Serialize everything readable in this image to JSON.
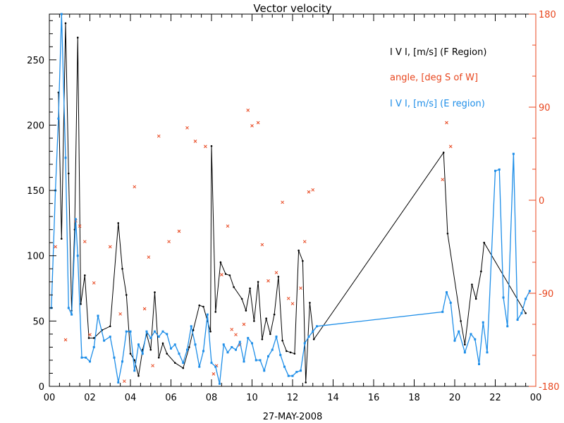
{
  "chart_data": {
    "type": "line",
    "title": "Vector velocity",
    "xlabel": "27-MAY-2008",
    "x_range": [
      0,
      24
    ],
    "x_ticks": [
      "00",
      "02",
      "04",
      "06",
      "08",
      "10",
      "12",
      "14",
      "16",
      "18",
      "20",
      "22",
      "00"
    ],
    "y_left_range": [
      0,
      285
    ],
    "y_left_ticks": [
      "0",
      "50",
      "100",
      "150",
      "200",
      "250"
    ],
    "y_right_range": [
      -180,
      180
    ],
    "y_right_ticks": [
      "-180",
      "-90",
      "0",
      "90",
      "180"
    ],
    "grid": false,
    "legend_position": "top-right",
    "colors": {
      "f_region": "#000000",
      "angle": "#e8461e",
      "e_region": "#1e8ee8",
      "axis": "#000000",
      "right_axis": "#e8461e"
    },
    "series": [
      {
        "name": "I V I, [m/s] (F Region)",
        "axis": "left",
        "marker": "dot-line",
        "points": [
          [
            0.45,
            225
          ],
          [
            0.6,
            113
          ],
          [
            0.8,
            278
          ],
          [
            0.95,
            163
          ],
          [
            1.1,
            58
          ],
          [
            1.25,
            120
          ],
          [
            1.4,
            267
          ],
          [
            1.55,
            63
          ],
          [
            1.75,
            85
          ],
          [
            1.95,
            37
          ],
          [
            2.2,
            37
          ],
          [
            2.6,
            43
          ],
          [
            3.0,
            46
          ],
          [
            3.4,
            125
          ],
          [
            3.6,
            90
          ],
          [
            3.8,
            70
          ],
          [
            4.0,
            25
          ],
          [
            4.2,
            20
          ],
          [
            4.4,
            8
          ],
          [
            4.6,
            28
          ],
          [
            4.8,
            40
          ],
          [
            5.0,
            28
          ],
          [
            5.2,
            72
          ],
          [
            5.4,
            22
          ],
          [
            5.6,
            33
          ],
          [
            5.8,
            25
          ],
          [
            6.2,
            18
          ],
          [
            6.6,
            14
          ],
          [
            6.9,
            30
          ],
          [
            7.1,
            43
          ],
          [
            7.4,
            62
          ],
          [
            7.6,
            61
          ],
          [
            7.8,
            50
          ],
          [
            7.95,
            42
          ],
          [
            8.0,
            184
          ],
          [
            8.2,
            57
          ],
          [
            8.45,
            95
          ],
          [
            8.7,
            86
          ],
          [
            8.9,
            85
          ],
          [
            9.1,
            76
          ],
          [
            9.5,
            67
          ],
          [
            9.7,
            58
          ],
          [
            9.9,
            75
          ],
          [
            10.1,
            50
          ],
          [
            10.3,
            80
          ],
          [
            10.5,
            36
          ],
          [
            10.7,
            52
          ],
          [
            10.9,
            40
          ],
          [
            11.1,
            55
          ],
          [
            11.3,
            84
          ],
          [
            11.5,
            35
          ],
          [
            11.7,
            27
          ],
          [
            11.9,
            26
          ],
          [
            12.1,
            25
          ],
          [
            12.3,
            104
          ],
          [
            12.5,
            96
          ],
          [
            12.65,
            3
          ],
          [
            12.85,
            64
          ],
          [
            13.05,
            36
          ],
          [
            19.45,
            179
          ],
          [
            19.65,
            117
          ],
          [
            20.3,
            50
          ],
          [
            20.5,
            32
          ],
          [
            20.85,
            78
          ],
          [
            21.05,
            67
          ],
          [
            21.3,
            88
          ],
          [
            21.45,
            110
          ],
          [
            23.5,
            56
          ]
        ]
      },
      {
        "name": "angle, [deg S of W]",
        "axis": "right",
        "marker": "cross",
        "points": [
          [
            0.3,
            -45
          ],
          [
            0.8,
            -135
          ],
          [
            1.3,
            -20
          ],
          [
            1.5,
            -25
          ],
          [
            1.75,
            -40
          ],
          [
            2.0,
            -130
          ],
          [
            2.2,
            -80
          ],
          [
            3.0,
            -45
          ],
          [
            3.5,
            -110
          ],
          [
            3.7,
            -175
          ],
          [
            4.2,
            13
          ],
          [
            4.7,
            -105
          ],
          [
            4.9,
            -55
          ],
          [
            5.1,
            -160
          ],
          [
            5.4,
            62
          ],
          [
            5.9,
            -40
          ],
          [
            6.4,
            -30
          ],
          [
            6.8,
            70
          ],
          [
            7.2,
            57
          ],
          [
            7.7,
            52
          ],
          [
            8.1,
            -168
          ],
          [
            8.25,
            -160
          ],
          [
            8.5,
            -72
          ],
          [
            8.8,
            -25
          ],
          [
            9.0,
            -125
          ],
          [
            9.2,
            -130
          ],
          [
            9.4,
            -140
          ],
          [
            9.6,
            -120
          ],
          [
            9.8,
            87
          ],
          [
            10.0,
            72
          ],
          [
            10.3,
            75
          ],
          [
            10.5,
            -43
          ],
          [
            10.8,
            -78
          ],
          [
            11.2,
            -70
          ],
          [
            11.5,
            -2
          ],
          [
            11.8,
            -95
          ],
          [
            12.0,
            -100
          ],
          [
            12.4,
            -85
          ],
          [
            12.6,
            -40
          ],
          [
            12.8,
            8
          ],
          [
            13.0,
            10
          ],
          [
            19.4,
            20
          ],
          [
            19.6,
            75
          ],
          [
            19.8,
            52
          ]
        ]
      },
      {
        "name": "I V I, [m/s] (E region)",
        "axis": "left",
        "marker": "square-line",
        "points": [
          [
            0.1,
            60
          ],
          [
            0.3,
            150
          ],
          [
            0.45,
            205
          ],
          [
            0.6,
            285
          ],
          [
            0.8,
            175
          ],
          [
            0.95,
            60
          ],
          [
            1.1,
            55
          ],
          [
            1.3,
            128
          ],
          [
            1.4,
            100
          ],
          [
            1.6,
            22
          ],
          [
            1.8,
            22
          ],
          [
            2.0,
            19
          ],
          [
            2.2,
            30
          ],
          [
            2.4,
            54
          ],
          [
            2.7,
            35
          ],
          [
            3.0,
            38
          ],
          [
            3.2,
            22
          ],
          [
            3.4,
            3
          ],
          [
            3.6,
            19
          ],
          [
            3.8,
            42
          ],
          [
            4.0,
            42
          ],
          [
            4.2,
            12
          ],
          [
            4.4,
            32
          ],
          [
            4.6,
            25
          ],
          [
            4.8,
            42
          ],
          [
            5.0,
            37
          ],
          [
            5.2,
            42
          ],
          [
            5.4,
            38
          ],
          [
            5.6,
            42
          ],
          [
            5.8,
            40
          ],
          [
            6.0,
            29
          ],
          [
            6.2,
            32
          ],
          [
            6.4,
            25
          ],
          [
            6.6,
            18
          ],
          [
            6.8,
            28
          ],
          [
            7.0,
            46
          ],
          [
            7.2,
            32
          ],
          [
            7.4,
            15
          ],
          [
            7.6,
            27
          ],
          [
            7.8,
            55
          ],
          [
            8.0,
            18
          ],
          [
            8.2,
            15
          ],
          [
            8.4,
            2
          ],
          [
            8.6,
            32
          ],
          [
            8.8,
            26
          ],
          [
            9.0,
            30
          ],
          [
            9.2,
            28
          ],
          [
            9.4,
            34
          ],
          [
            9.6,
            19
          ],
          [
            9.8,
            37
          ],
          [
            10.0,
            33
          ],
          [
            10.2,
            20
          ],
          [
            10.4,
            20
          ],
          [
            10.6,
            12
          ],
          [
            10.8,
            23
          ],
          [
            11.0,
            28
          ],
          [
            11.2,
            38
          ],
          [
            11.4,
            24
          ],
          [
            11.6,
            15
          ],
          [
            11.8,
            8
          ],
          [
            12.0,
            8
          ],
          [
            12.2,
            11
          ],
          [
            12.4,
            12
          ],
          [
            12.6,
            33
          ],
          [
            12.8,
            38
          ],
          [
            13.0,
            42
          ],
          [
            13.2,
            46
          ],
          [
            19.4,
            57
          ],
          [
            19.6,
            72
          ],
          [
            19.8,
            64
          ],
          [
            20.0,
            35
          ],
          [
            20.2,
            42
          ],
          [
            20.5,
            26
          ],
          [
            20.8,
            40
          ],
          [
            21.0,
            36
          ],
          [
            21.2,
            17
          ],
          [
            21.4,
            49
          ],
          [
            21.6,
            26
          ],
          [
            22.0,
            165
          ],
          [
            22.2,
            166
          ],
          [
            22.4,
            68
          ],
          [
            22.6,
            46
          ],
          [
            22.9,
            178
          ],
          [
            23.1,
            51
          ],
          [
            23.3,
            56
          ],
          [
            23.5,
            67
          ],
          [
            23.7,
            73
          ]
        ]
      }
    ]
  }
}
